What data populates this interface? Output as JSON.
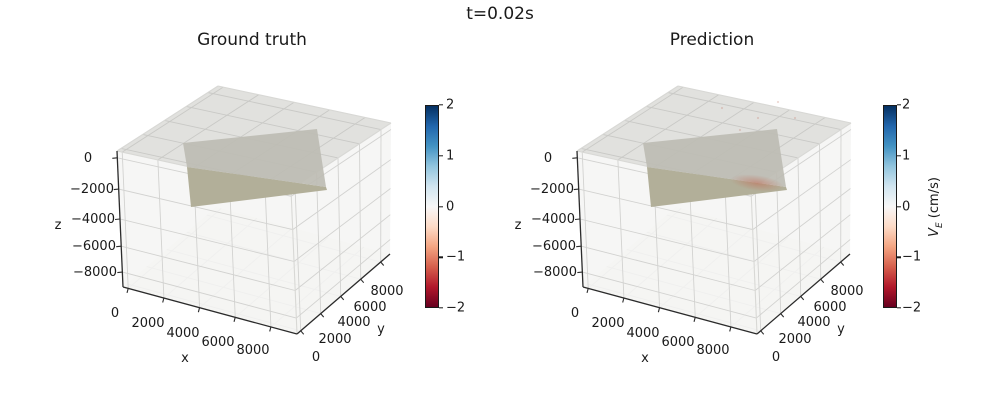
{
  "suptitle": "t=0.02s",
  "style": {
    "background": "#ffffff",
    "text_color": "#1a1a1a",
    "axis_color": "#2b2b2b",
    "grid_color": "#d2d2d0",
    "top_grid_color": "#c9c9c6",
    "pane_top": "#e1e1de",
    "pane_wall": "#f5f5f3",
    "pane_floor": "#f4f4f1",
    "edge_color": "#d8d8d5",
    "surface_top": "#bdbcb4",
    "surface_front": "#b2af99",
    "anomaly_color": "#c16c56",
    "colormap_low_to_high": [
      "#67001f",
      "#b2182b",
      "#d6604d",
      "#f4a582",
      "#fddbc7",
      "#f7f7f7",
      "#d1e5f0",
      "#92c5de",
      "#4393c3",
      "#2166ac",
      "#053061"
    ]
  },
  "panels": [
    {
      "title": "Ground truth",
      "xlabel": "x",
      "ylabel": "y",
      "zlabel": "z",
      "x_ticks": [
        "0",
        "2000",
        "4000",
        "6000",
        "8000"
      ],
      "y_ticks": [
        "0",
        "2000",
        "4000",
        "6000",
        "8000"
      ],
      "z_ticks": [
        "0",
        "−2000",
        "−4000",
        "−6000",
        "−8000"
      ],
      "colorbar": {
        "ticks": [
          "2",
          "1",
          "0",
          "−1",
          "−2"
        ]
      }
    },
    {
      "title": "Prediction",
      "xlabel": "x",
      "ylabel": "y",
      "zlabel": "z",
      "x_ticks": [
        "0",
        "2000",
        "4000",
        "6000",
        "8000"
      ],
      "y_ticks": [
        "0",
        "2000",
        "4000",
        "6000",
        "8000"
      ],
      "z_ticks": [
        "0",
        "−2000",
        "−4000",
        "−6000",
        "−8000"
      ],
      "colorbar": {
        "ticks": [
          "2",
          "1",
          "0",
          "−1",
          "−2"
        ],
        "label": {
          "var": "V",
          "sub": "E",
          "unit": " (cm/s)"
        }
      }
    }
  ],
  "chart_data": [
    {
      "type": "3d-surface",
      "suptitle": "t=0.02s",
      "title": "Ground truth",
      "xlabel": "x",
      "ylabel": "y",
      "zlabel": "z",
      "x_ticks": [
        0,
        2000,
        4000,
        6000,
        8000
      ],
      "y_ticks": [
        0,
        2000,
        4000,
        6000,
        8000
      ],
      "z_ticks": [
        0,
        -2000,
        -4000,
        -6000,
        -8000
      ],
      "xlim": [
        0,
        9500
      ],
      "ylim": [
        0,
        9500
      ],
      "zlim": [
        -9500,
        500
      ],
      "grid": true,
      "colormap": "RdBu",
      "clim": [
        -2,
        2
      ],
      "colorbar_ticks": [
        2,
        1,
        0,
        -1,
        -2
      ],
      "colorbar_label": null,
      "surface": {
        "shape": "flat rectangular swath, rotated ~20 deg in the x-y plane, slightly tilted in z",
        "approx_xy_corners": [
          [
            1800,
            7200
          ],
          [
            7800,
            8800
          ],
          [
            8600,
            3200
          ],
          [
            2600,
            1400
          ]
        ],
        "approx_z_range": [
          -3200,
          -400
        ],
        "values": "V_E ~ 0 cm/s everywhere (neutral / near-white on RdBu scale)"
      }
    },
    {
      "type": "3d-surface",
      "suptitle": "t=0.02s",
      "title": "Prediction",
      "xlabel": "x",
      "ylabel": "y",
      "zlabel": "z",
      "x_ticks": [
        0,
        2000,
        4000,
        6000,
        8000
      ],
      "y_ticks": [
        0,
        2000,
        4000,
        6000,
        8000
      ],
      "z_ticks": [
        0,
        -2000,
        -4000,
        -6000,
        -8000
      ],
      "xlim": [
        0,
        9500
      ],
      "ylim": [
        0,
        9500
      ],
      "zlim": [
        -9500,
        500
      ],
      "grid": true,
      "colormap": "RdBu",
      "clim": [
        -2,
        2
      ],
      "colorbar_ticks": [
        2,
        1,
        0,
        -1,
        -2
      ],
      "colorbar_label": "V_E (cm/s)",
      "surface": {
        "shape": "flat rectangular swath, rotated ~20 deg in the x-y plane, slightly tilted in z",
        "approx_xy_corners": [
          [
            1800,
            7200
          ],
          [
            7800,
            8800
          ],
          [
            8600,
            3200
          ],
          [
            2600,
            1400
          ]
        ],
        "approx_z_range": [
          -3200,
          -400
        ],
        "values": "V_E ~ 0 cm/s with a faint negative patch (~ -0.3 cm/s, light red) near the lower front edge of the swath"
      }
    }
  ]
}
